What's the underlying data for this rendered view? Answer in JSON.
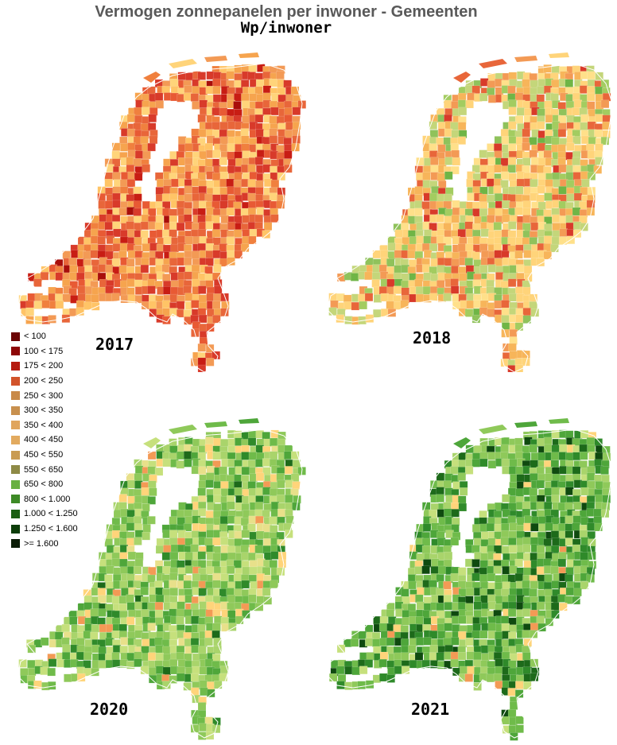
{
  "header": {
    "title": "Vermogen zonnepanelen per inwoner - Gemeenten",
    "subtitle": "Wp/inwoner"
  },
  "legend": {
    "items": [
      {
        "label": "< 100",
        "color": "#6b0505"
      },
      {
        "label": "100 < 175",
        "color": "#8d0606"
      },
      {
        "label": "175 < 200",
        "color": "#b51a0f"
      },
      {
        "label": "200 < 250",
        "color": "#d2532a"
      },
      {
        "label": "250 < 300",
        "color": "#c98a49"
      },
      {
        "label": "300 < 350",
        "color": "#c8904e"
      },
      {
        "label": "350 < 400",
        "color": "#e0a55e"
      },
      {
        "label": "400 < 450",
        "color": "#e2aa5f"
      },
      {
        "label": "450 < 550",
        "color": "#c99b52"
      },
      {
        "label": "550 < 650",
        "color": "#8e8a46"
      },
      {
        "label": "650 < 800",
        "color": "#69b042"
      },
      {
        "label": "800 < 1.000",
        "color": "#3d8a26"
      },
      {
        "label": "1.000 < 1.250",
        "color": "#1b5e12"
      },
      {
        "label": "1.250 < 1.600",
        "color": "#0c3d08"
      },
      {
        "label": ">= 1.600",
        "color": "#0b1d07"
      }
    ]
  },
  "maps": [
    {
      "year": "2017",
      "palette": [
        "#f6a44e",
        "#ffd47a",
        "#e8663a",
        "#d83a2a",
        "#f39a55",
        "#ffc466",
        "#e85a34",
        "#c81d14",
        "#f0803e",
        "#a80e0b"
      ],
      "weights": [
        0.18,
        0.1,
        0.16,
        0.16,
        0.12,
        0.08,
        0.1,
        0.04,
        0.05,
        0.01
      ]
    },
    {
      "year": "2018",
      "palette": [
        "#ffd47a",
        "#f7b55a",
        "#c4d67a",
        "#a3cc60",
        "#f39a55",
        "#e8663a",
        "#ffe08a",
        "#d83a2a",
        "#8fc25b",
        "#6fb546"
      ],
      "weights": [
        0.22,
        0.16,
        0.16,
        0.08,
        0.1,
        0.08,
        0.08,
        0.04,
        0.05,
        0.03
      ]
    },
    {
      "year": "2020",
      "palette": [
        "#8fc95a",
        "#a9d46b",
        "#c6e07c",
        "#6fbb4a",
        "#4ea63a",
        "#ffd47a",
        "#e8e08a",
        "#2f8a2a",
        "#f39a55",
        "#1d6a1a"
      ],
      "weights": [
        0.22,
        0.18,
        0.14,
        0.14,
        0.1,
        0.06,
        0.06,
        0.05,
        0.03,
        0.02
      ]
    },
    {
      "year": "2021",
      "palette": [
        "#6fbb4a",
        "#4ea63a",
        "#8fc95a",
        "#2f8a2a",
        "#a9d46b",
        "#1d6a1a",
        "#c6e07c",
        "#0f4a0f",
        "#ffd47a",
        "#f39a55"
      ],
      "weights": [
        0.2,
        0.18,
        0.16,
        0.12,
        0.1,
        0.08,
        0.06,
        0.05,
        0.03,
        0.02
      ]
    }
  ]
}
